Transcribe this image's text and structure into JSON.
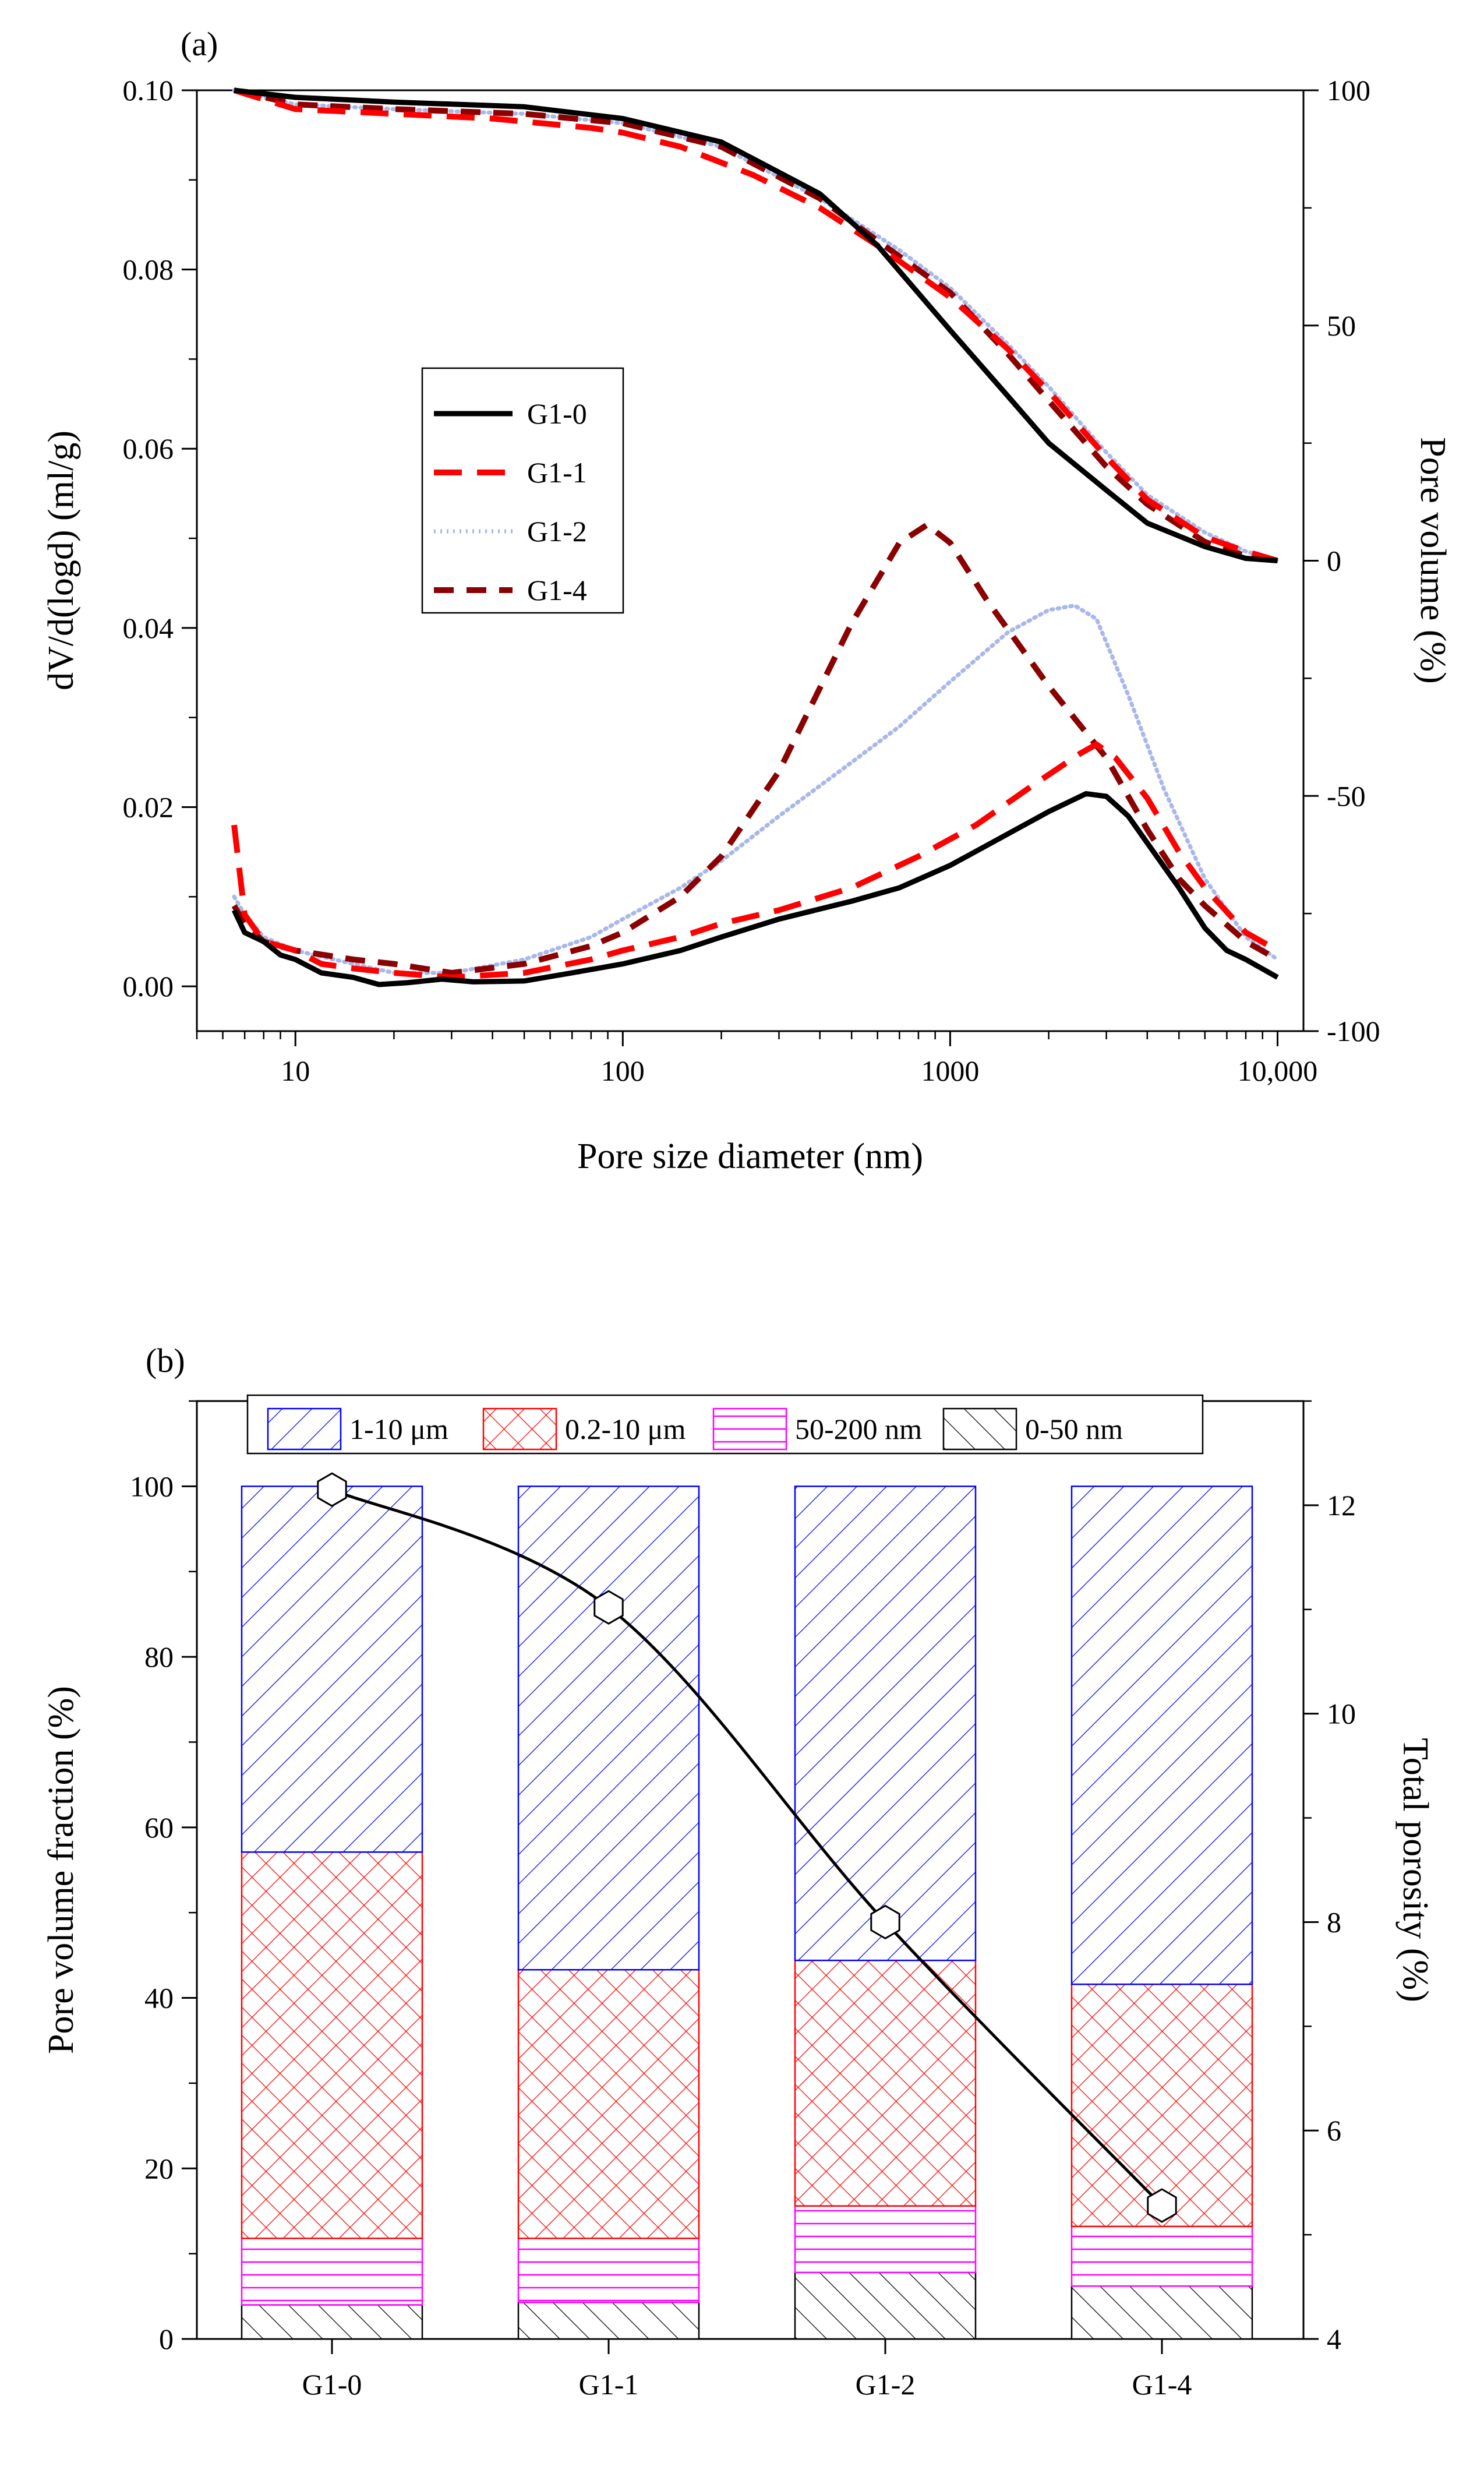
{
  "chart_data": [
    {
      "panel_label": "(a)",
      "type": "line",
      "xlabel": "Pore size diameter (nm)",
      "ylabel": "dV/d(logd) (ml/g)",
      "y2label": "Pore volume (%)",
      "xscale": "log",
      "xlim": [
        5,
        12000
      ],
      "ylim": [
        -0.005,
        0.1
      ],
      "y2lim": [
        -100,
        100
      ],
      "x_ticks": [
        10,
        100,
        1000,
        10000
      ],
      "x_tick_labels": [
        "10",
        "100",
        "1000",
        "10,000"
      ],
      "y_ticks": [
        0,
        0.02,
        0.04,
        0.06,
        0.08,
        0.1
      ],
      "y_tick_labels": [
        "0.00",
        "0.02",
        "0.04",
        "0.06",
        "0.08",
        "0.10"
      ],
      "y2_ticks": [
        -100,
        -50,
        0,
        50,
        100
      ],
      "y2_tick_labels": [
        "-100",
        "-50",
        "0",
        "50",
        "100"
      ],
      "legend_position": "center-left",
      "series": [
        {
          "name": "G1-0",
          "color": "#000000",
          "dash": "solid",
          "distribution": [
            [
              6.5,
              0.0085
            ],
            [
              7,
              0.006
            ],
            [
              8,
              0.005
            ],
            [
              9,
              0.0035
            ],
            [
              10,
              0.003
            ],
            [
              12,
              0.0015
            ],
            [
              15,
              0.001
            ],
            [
              18,
              0.0002
            ],
            [
              22,
              0.0004
            ],
            [
              28,
              0.0008
            ],
            [
              35,
              0.0005
            ],
            [
              50,
              0.0006
            ],
            [
              70,
              0.0015
            ],
            [
              100,
              0.0025
            ],
            [
              150,
              0.004
            ],
            [
              200,
              0.0055
            ],
            [
              300,
              0.0075
            ],
            [
              500,
              0.0095
            ],
            [
              700,
              0.011
            ],
            [
              1000,
              0.0135
            ],
            [
              1500,
              0.017
            ],
            [
              2000,
              0.0195
            ],
            [
              2600,
              0.0215
            ],
            [
              3000,
              0.0212
            ],
            [
              3500,
              0.019
            ],
            [
              4000,
              0.016
            ],
            [
              5000,
              0.011
            ],
            [
              6000,
              0.0065
            ],
            [
              7000,
              0.004
            ],
            [
              8000,
              0.003
            ],
            [
              10000,
              0.001
            ]
          ],
          "cumulative": [
            [
              6.5,
              100
            ],
            [
              10,
              98.5
            ],
            [
              20,
              97.5
            ],
            [
              50,
              96.5
            ],
            [
              100,
              94
            ],
            [
              200,
              89
            ],
            [
              400,
              78
            ],
            [
              600,
              67
            ],
            [
              1000,
              49
            ],
            [
              1500,
              35
            ],
            [
              2000,
              25
            ],
            [
              3000,
              15
            ],
            [
              4000,
              8
            ],
            [
              6000,
              3
            ],
            [
              8000,
              0.5
            ],
            [
              10000,
              0
            ]
          ]
        },
        {
          "name": "G1-1",
          "color": "#ff0000",
          "dash": "long-dash",
          "distribution": [
            [
              6.5,
              0.018
            ],
            [
              7,
              0.008
            ],
            [
              8,
              0.005
            ],
            [
              9,
              0.0045
            ],
            [
              10,
              0.004
            ],
            [
              12,
              0.0025
            ],
            [
              15,
              0.002
            ],
            [
              20,
              0.0015
            ],
            [
              30,
              0.001
            ],
            [
              50,
              0.0015
            ],
            [
              80,
              0.003
            ],
            [
              100,
              0.004
            ],
            [
              150,
              0.0055
            ],
            [
              200,
              0.007
            ],
            [
              300,
              0.0085
            ],
            [
              500,
              0.011
            ],
            [
              800,
              0.0145
            ],
            [
              1200,
              0.018
            ],
            [
              1800,
              0.0225
            ],
            [
              2500,
              0.026
            ],
            [
              2800,
              0.027
            ],
            [
              3200,
              0.0255
            ],
            [
              4000,
              0.021
            ],
            [
              5000,
              0.015
            ],
            [
              6000,
              0.011
            ],
            [
              8000,
              0.006
            ],
            [
              10000,
              0.004
            ]
          ],
          "cumulative": [
            [
              6.5,
              100
            ],
            [
              10,
              96
            ],
            [
              20,
              95
            ],
            [
              40,
              94
            ],
            [
              80,
              92
            ],
            [
              100,
              91
            ],
            [
              150,
              88
            ],
            [
              250,
              82
            ],
            [
              400,
              75
            ],
            [
              600,
              67
            ],
            [
              1000,
              56
            ],
            [
              1500,
              45
            ],
            [
              2000,
              36
            ],
            [
              3000,
              22
            ],
            [
              4000,
              13
            ],
            [
              6000,
              5
            ],
            [
              8000,
              2
            ],
            [
              10000,
              0
            ]
          ]
        },
        {
          "name": "G1-2",
          "color": "#aab8e8",
          "dash": "dotted",
          "distribution": [
            [
              6.5,
              0.01
            ],
            [
              7,
              0.008
            ],
            [
              8,
              0.0055
            ],
            [
              10,
              0.004
            ],
            [
              15,
              0.0025
            ],
            [
              20,
              0.0015
            ],
            [
              30,
              0.0015
            ],
            [
              50,
              0.003
            ],
            [
              80,
              0.0055
            ],
            [
              100,
              0.0075
            ],
            [
              150,
              0.011
            ],
            [
              200,
              0.014
            ],
            [
              300,
              0.019
            ],
            [
              500,
              0.025
            ],
            [
              700,
              0.029
            ],
            [
              1000,
              0.034
            ],
            [
              1500,
              0.0395
            ],
            [
              2000,
              0.042
            ],
            [
              2400,
              0.0425
            ],
            [
              2800,
              0.041
            ],
            [
              3500,
              0.0325
            ],
            [
              4500,
              0.022
            ],
            [
              6000,
              0.012
            ],
            [
              8000,
              0.0055
            ],
            [
              10000,
              0.003
            ]
          ],
          "cumulative": [
            [
              6.5,
              100
            ],
            [
              10,
              97
            ],
            [
              20,
              96
            ],
            [
              50,
              95
            ],
            [
              100,
              93
            ],
            [
              200,
              88
            ],
            [
              400,
              77
            ],
            [
              700,
              66
            ],
            [
              1000,
              58
            ],
            [
              1500,
              46
            ],
            [
              2000,
              37
            ],
            [
              3000,
              23
            ],
            [
              4000,
              14
            ],
            [
              6000,
              6
            ],
            [
              8000,
              2
            ],
            [
              10000,
              0
            ]
          ]
        },
        {
          "name": "G1-4",
          "color": "#8b0000",
          "dash": "dash",
          "distribution": [
            [
              6.5,
              0.009
            ],
            [
              7,
              0.007
            ],
            [
              8,
              0.005
            ],
            [
              10,
              0.004
            ],
            [
              15,
              0.003
            ],
            [
              20,
              0.0025
            ],
            [
              30,
              0.0015
            ],
            [
              50,
              0.0025
            ],
            [
              80,
              0.0045
            ],
            [
              100,
              0.006
            ],
            [
              150,
              0.01
            ],
            [
              200,
              0.0145
            ],
            [
              300,
              0.024
            ],
            [
              500,
              0.0405
            ],
            [
              700,
              0.0495
            ],
            [
              850,
              0.0515
            ],
            [
              1000,
              0.0495
            ],
            [
              1300,
              0.043
            ],
            [
              2000,
              0.0335
            ],
            [
              3000,
              0.0255
            ],
            [
              4000,
              0.0175
            ],
            [
              5000,
              0.012
            ],
            [
              6000,
              0.009
            ],
            [
              8000,
              0.005
            ],
            [
              10000,
              0.003
            ]
          ],
          "cumulative": [
            [
              6.5,
              100
            ],
            [
              10,
              97
            ],
            [
              20,
              96
            ],
            [
              50,
              95
            ],
            [
              100,
              93
            ],
            [
              200,
              88
            ],
            [
              400,
              77
            ],
            [
              600,
              68
            ],
            [
              1000,
              57
            ],
            [
              1500,
              44
            ],
            [
              2000,
              34
            ],
            [
              3000,
              20
            ],
            [
              4000,
              12
            ],
            [
              6000,
              4
            ],
            [
              8000,
              1
            ],
            [
              10000,
              0
            ]
          ]
        }
      ]
    },
    {
      "panel_label": "(b)",
      "type": "bar",
      "stacked": true,
      "ylabel": "Pore volume fraction (%)",
      "y2label": "Total porosity (%)",
      "categories": [
        "G1-0",
        "G1-1",
        "G1-2",
        "G1-4"
      ],
      "ylim": [
        0,
        110
      ],
      "y2lim": [
        4,
        13
      ],
      "y_ticks": [
        0,
        20,
        40,
        60,
        80,
        100
      ],
      "y2_ticks": [
        4,
        6,
        8,
        10,
        12
      ],
      "legend_position": "top",
      "series": [
        {
          "name": "0-50 nm",
          "color": "#000000",
          "pattern": "backslash",
          "values": [
            4.0,
            4.3,
            7.8,
            6.2
          ]
        },
        {
          "name": "50-200 nm",
          "color": "#ff00ff",
          "pattern": "horizontal",
          "values": [
            7.8,
            7.5,
            7.8,
            7.0
          ]
        },
        {
          "name": "0.2-10 μm",
          "color": "#ff0000",
          "pattern": "crosshatch",
          "values": [
            45.3,
            31.5,
            28.8,
            28.4
          ]
        },
        {
          "name": "1-10 μm",
          "color": "#0000ff",
          "pattern": "slash",
          "values": [
            42.9,
            56.7,
            55.6,
            58.4
          ]
        }
      ],
      "legend_order": [
        "1-10 μm",
        "0.2-10 μm",
        "50-200 nm",
        "0-50 nm"
      ],
      "total_porosity": {
        "values": [
          12.15,
          11.02,
          8.0,
          5.28
        ],
        "marker": "hexagon",
        "color": "#000000"
      }
    }
  ]
}
